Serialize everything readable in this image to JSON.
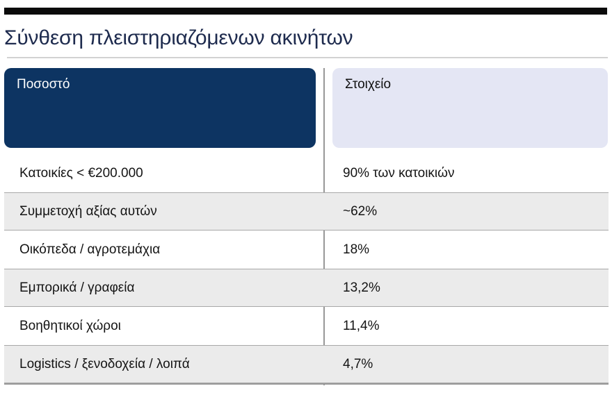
{
  "page": {
    "title": "Σύνθεση πλειστηριαζόμενων ακινήτων"
  },
  "table": {
    "columns": [
      {
        "label": "Ποσοστό"
      },
      {
        "label": "Στοιχείο"
      }
    ],
    "rows": [
      {
        "label": "Κατοικίες < €200.000",
        "value": "90% των κατοικιών"
      },
      {
        "label": "Συμμετοχή αξίας αυτών",
        "value": "~62%"
      },
      {
        "label": "Οικόπεδα / αγροτεμάχια",
        "value": "18%"
      },
      {
        "label": "Εμπορικά / γραφεία",
        "value": "13,2%"
      },
      {
        "label": "Βοηθητικοί χώροι",
        "value": "11,4%"
      },
      {
        "label": "Logistics / ξενοδοχεία / λοιπά",
        "value": "4,7%"
      }
    ]
  },
  "chart_data": {
    "type": "table",
    "title": "Σύνθεση πλειστηριαζόμενων ακινήτων",
    "columns": [
      "Ποσοστό",
      "Στοιχείο"
    ],
    "rows": [
      [
        "Κατοικίες < €200.000",
        "90% των κατοικιών"
      ],
      [
        "Συμμετοχή αξίας αυτών",
        "~62%"
      ],
      [
        "Οικόπεδα / αγροτεμάχια",
        "18%"
      ],
      [
        "Εμπορικά / γραφεία",
        "13,2%"
      ],
      [
        "Βοηθητικοί χώροι",
        "11,4%"
      ],
      [
        "Logistics / ξενοδοχεία / λοιπά",
        "4,7%"
      ]
    ],
    "numeric_values": {
      "Κατοικίες < €200.000 (ποσοστό των κατοικιών)": 90,
      "Συμμετοχή αξίας αυτών": 62,
      "Οικόπεδα / αγροτεμάχια": 18,
      "Εμπορικά / γραφεία": 13.2,
      "Βοηθητικοί χώροι": 11.4,
      "Logistics / ξενοδοχεία / λοιπά": 4.7
    },
    "layout_hints": {
      "header_row": true,
      "zebra_striping": true,
      "column_divider": true
    }
  },
  "colors": {
    "top_bar": "#0b0b0b",
    "title_text": "#1e2b4e",
    "header_left_bg": "#0d3462",
    "header_left_text": "#ffffff",
    "header_right_bg": "#e4e6f4",
    "header_right_text": "#101010",
    "row_alt_bg": "#ebebeb",
    "row_border": "#a8a8a8",
    "column_divider": "#979797",
    "bottom_rule": "#9a9a9a"
  }
}
